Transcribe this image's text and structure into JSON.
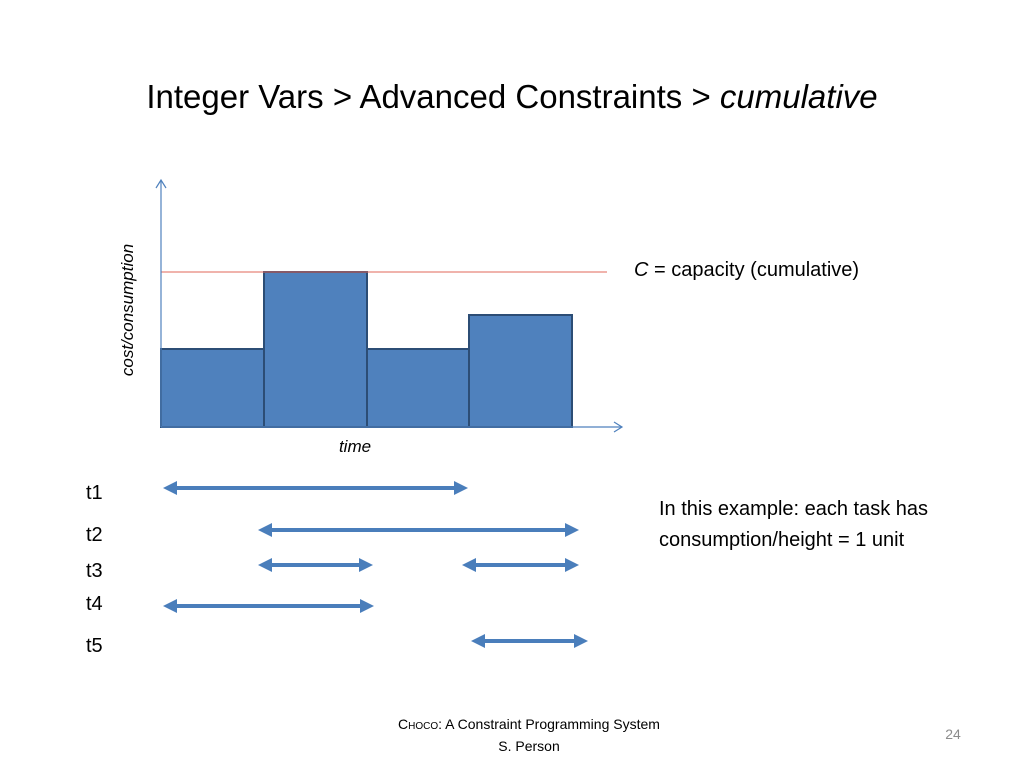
{
  "header": {
    "title": "Integer Vars > Advanced Constraints > ",
    "title_emphasis": "cumulative"
  },
  "diagram": {
    "y_axis_label": "cost/consumption",
    "x_axis_label": "time",
    "capacity_symbol": "C",
    "capacity_label": " = capacity (cumulative)",
    "tasks": [
      "t1",
      "t2",
      "t3",
      "t4",
      "t5"
    ],
    "note": [
      "In this example: each task has",
      "consumption/height = 1 unit"
    ]
  },
  "footer": {
    "system_name": "Choco",
    "system_desc": ": A Constraint Programming System",
    "author": "S. Person",
    "page": "24"
  }
}
